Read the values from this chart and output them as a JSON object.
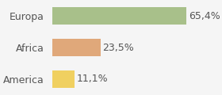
{
  "categories": [
    "America",
    "Africa",
    "Europa"
  ],
  "values": [
    11.1,
    23.5,
    65.4
  ],
  "labels": [
    "11,1%",
    "23,5%",
    "65,4%"
  ],
  "bar_colors": [
    "#f0d060",
    "#e0a87a",
    "#a8c08a"
  ],
  "background_color": "#f5f5f5",
  "xlim": [
    0,
    80
  ],
  "label_fontsize": 9,
  "tick_fontsize": 9
}
